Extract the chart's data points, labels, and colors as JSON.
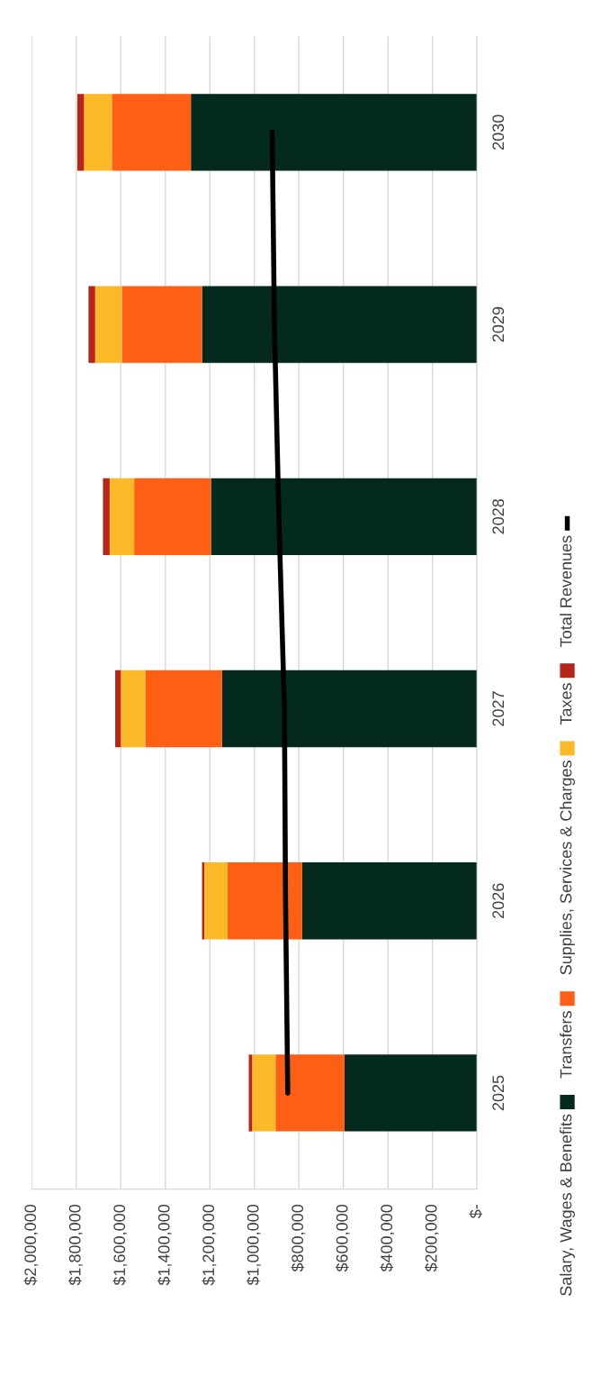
{
  "chart_data": {
    "type": "bar",
    "orientation": "horizontal",
    "stacked": true,
    "categories": [
      "2030",
      "2029",
      "2028",
      "2027",
      "2026",
      "2025"
    ],
    "series": [
      {
        "name": "Salary, Wages & Benefits",
        "color": "#032a1c",
        "values": [
          1285000,
          1235000,
          1195000,
          1145000,
          785000,
          595000
        ]
      },
      {
        "name": "Transfers",
        "color": "#fd5f14",
        "values": [
          355000,
          360000,
          345000,
          345000,
          335000,
          310000
        ]
      },
      {
        "name": "Supplies, Services & Charges",
        "color": "#fbb928",
        "values": [
          125000,
          120000,
          110000,
          110000,
          105000,
          105000
        ]
      },
      {
        "name": "Taxes",
        "color": "#b5261a",
        "values": [
          30000,
          30000,
          30000,
          25000,
          10000,
          15000
        ]
      },
      {
        "name": "Total Revenues",
        "type": "line",
        "color": "#000000",
        "values": [
          920000,
          910000,
          890000,
          865000,
          860000,
          850000
        ]
      }
    ],
    "xlim": [
      2000000,
      0
    ],
    "xticks": [
      {
        "value": 2000000,
        "label": "$2,000,000"
      },
      {
        "value": 1800000,
        "label": "$1,800,000"
      },
      {
        "value": 1600000,
        "label": "$1,600,000"
      },
      {
        "value": 1400000,
        "label": "$1,400,000"
      },
      {
        "value": 1200000,
        "label": "$1,200,000"
      },
      {
        "value": 1000000,
        "label": "$1,000,000"
      },
      {
        "value": 800000,
        "label": "$800,000"
      },
      {
        "value": 600000,
        "label": "$600,000"
      },
      {
        "value": 400000,
        "label": "$400,000"
      },
      {
        "value": 200000,
        "label": "$200,000"
      },
      {
        "value": 0,
        "label": "$-"
      }
    ],
    "grid": "x",
    "legend": "right"
  }
}
